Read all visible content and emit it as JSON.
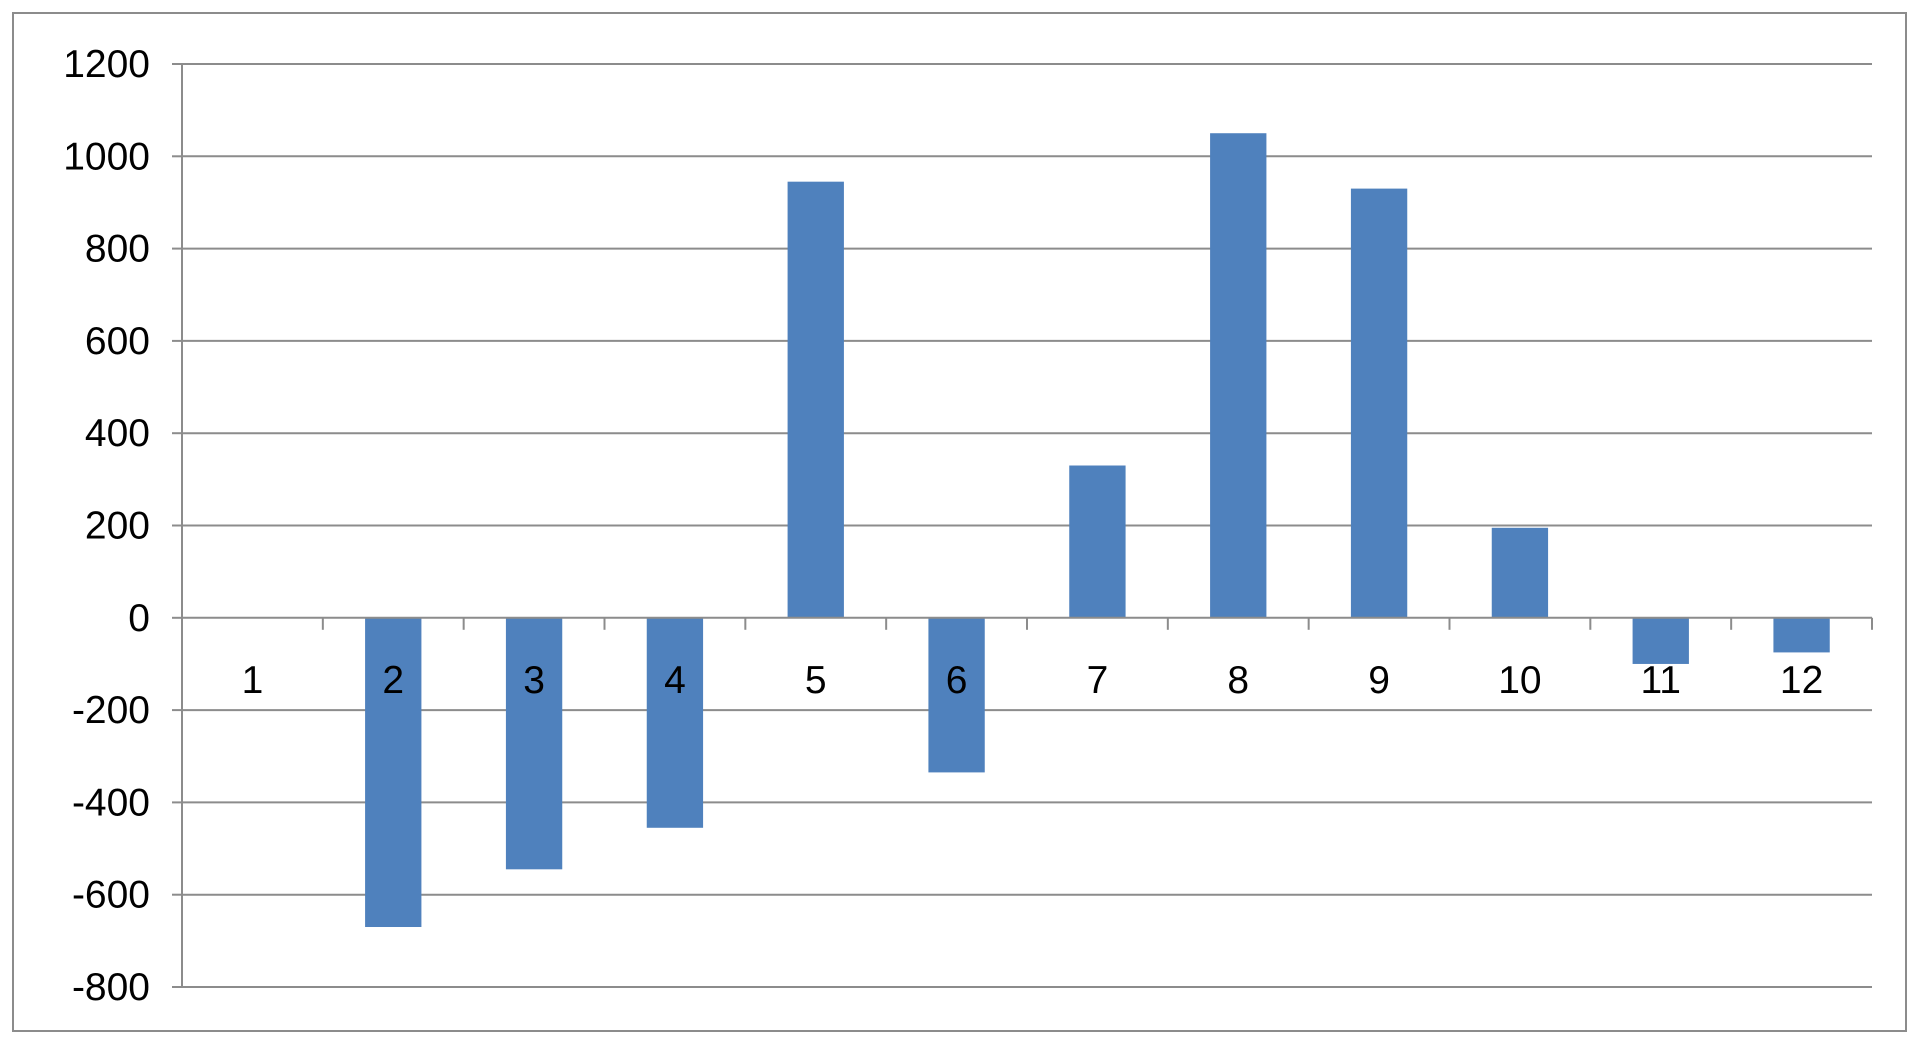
{
  "chart_data": {
    "type": "bar",
    "title": "",
    "xlabel": "",
    "ylabel": "",
    "categories": [
      "1",
      "2",
      "3",
      "4",
      "5",
      "6",
      "7",
      "8",
      "9",
      "10",
      "11",
      "12"
    ],
    "series": [
      {
        "values": [
          0,
          -670,
          -545,
          -455,
          945,
          -335,
          330,
          1050,
          930,
          195,
          -100,
          -75
        ]
      }
    ],
    "ylim": [
      -800,
      1200
    ],
    "yticks": [
      1200,
      1000,
      800,
      600,
      400,
      200,
      0,
      -200,
      -400,
      -600,
      -800
    ],
    "grid": true,
    "legend": "none",
    "colors": {
      "bar": "#4F81BD",
      "grid": "#8c8c8c",
      "axis": "#8c8c8c",
      "text": "#000000"
    }
  }
}
